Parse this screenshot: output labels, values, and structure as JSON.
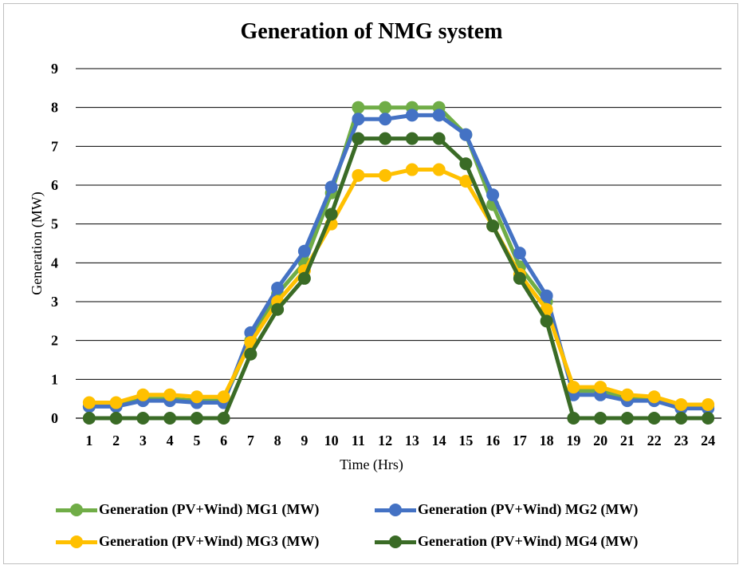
{
  "chart_data": {
    "type": "line",
    "title": "Generation of NMG system",
    "xlabel": "Time (Hrs)",
    "ylabel": "Generation (MW)",
    "ylim": [
      0,
      9
    ],
    "yticks": [
      "0",
      "1",
      "2",
      "3",
      "4",
      "5",
      "6",
      "7",
      "8",
      "9"
    ],
    "grid": true,
    "legend_position": "bottom",
    "x": [
      "1",
      "2",
      "3",
      "4",
      "5",
      "6",
      "7",
      "8",
      "9",
      "10",
      "11",
      "12",
      "13",
      "14",
      "15",
      "16",
      "17",
      "18",
      "19",
      "20",
      "21",
      "22",
      "23",
      "24"
    ],
    "series": [
      {
        "name": "Generation (PV+Wind) MG1 (MW)",
        "color": "#70ad47",
        "values": [
          0.3,
          0.35,
          0.5,
          0.5,
          0.45,
          0.45,
          2.0,
          3.2,
          4.0,
          5.8,
          8.0,
          8.0,
          8.0,
          8.0,
          7.3,
          5.5,
          3.9,
          3.0,
          0.7,
          0.7,
          0.5,
          0.5,
          0.3,
          0.3
        ]
      },
      {
        "name": "Generation (PV+Wind) MG2 (MW)",
        "color": "#4472c4",
        "values": [
          0.3,
          0.3,
          0.45,
          0.45,
          0.4,
          0.4,
          2.2,
          3.35,
          4.3,
          5.95,
          7.7,
          7.7,
          7.8,
          7.8,
          7.3,
          5.75,
          4.25,
          3.15,
          0.6,
          0.6,
          0.45,
          0.45,
          0.25,
          0.25
        ]
      },
      {
        "name": "Generation (PV+Wind) MG3 (MW)",
        "color": "#ffc000",
        "values": [
          0.4,
          0.4,
          0.6,
          0.6,
          0.55,
          0.55,
          1.95,
          3.0,
          3.8,
          5.0,
          6.25,
          6.25,
          6.4,
          6.4,
          6.1,
          4.95,
          3.7,
          2.8,
          0.8,
          0.8,
          0.6,
          0.55,
          0.35,
          0.35
        ]
      },
      {
        "name": "Generation (PV+Wind) MG4 (MW)",
        "color": "#3a6b26",
        "values": [
          0,
          0,
          0,
          0,
          0,
          0,
          1.65,
          2.8,
          3.6,
          5.25,
          7.2,
          7.2,
          7.2,
          7.2,
          6.55,
          4.95,
          3.6,
          2.5,
          0,
          0,
          0,
          0,
          0,
          0
        ]
      }
    ]
  }
}
